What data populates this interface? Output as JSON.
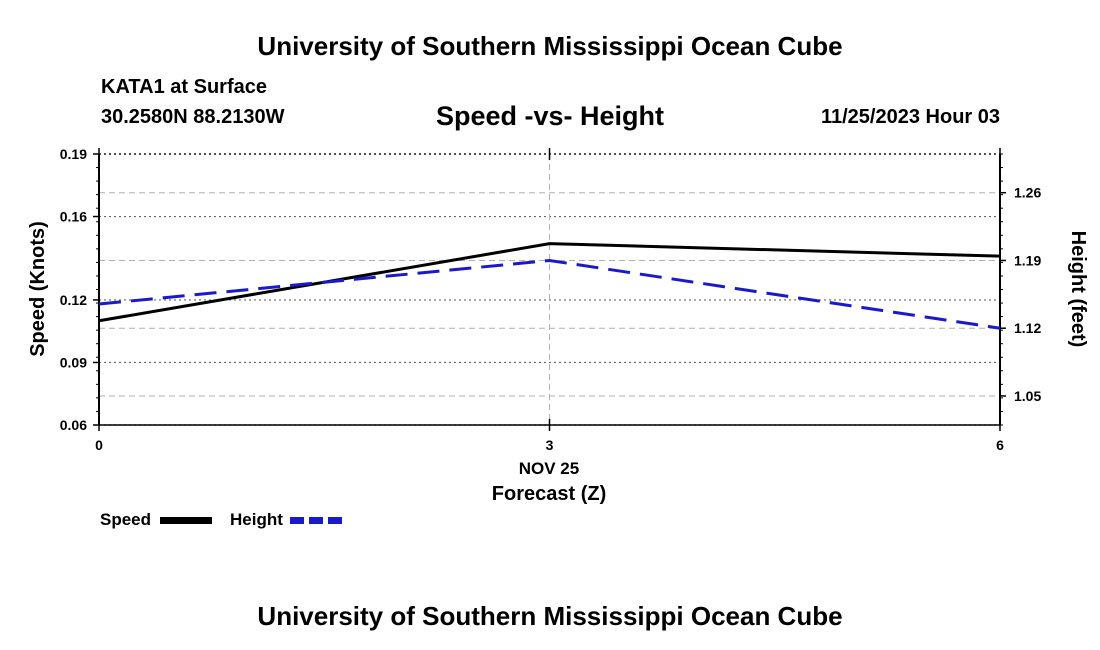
{
  "header": {
    "title_top": "University of Southern Mississippi Ocean Cube",
    "station": "KATA1 at Surface",
    "coords": "30.2580N  88.2130W",
    "plot_title": "Speed -vs- Height",
    "datetime": "11/25/2023 Hour 03",
    "title_bottom": "University of Southern Mississippi Ocean Cube"
  },
  "legend": {
    "speed_label": "Speed",
    "height_label": "Height"
  },
  "colors": {
    "speed": "#000000",
    "height": "#1a1acc",
    "grid": "#b0b0b0"
  },
  "chart_data": {
    "type": "line",
    "title": "Speed -vs- Height",
    "xlabel": "Forecast (Z)",
    "xsublabel": "NOV 25",
    "ylabel_left": "Speed (Knots)",
    "ylabel_right": "Height (feet)",
    "x": [
      0,
      3,
      6
    ],
    "xlim": [
      0,
      6
    ],
    "x_ticks": [
      "0",
      "3",
      "6"
    ],
    "ylim_left": [
      0.06,
      0.19
    ],
    "y_ticks_left": [
      "0.06",
      "0.09",
      "0.12",
      "0.16",
      "0.19"
    ],
    "ylim_right": [
      1.02,
      1.3
    ],
    "y_ticks_right": [
      "1.05",
      "1.12",
      "1.19",
      "1.26"
    ],
    "series": [
      {
        "name": "Speed",
        "axis": "left",
        "style": "solid",
        "values": [
          0.11,
          0.147,
          0.141
        ]
      },
      {
        "name": "Height",
        "axis": "right",
        "style": "dashed",
        "values": [
          1.145,
          1.19,
          1.12
        ]
      }
    ],
    "grid": true
  }
}
